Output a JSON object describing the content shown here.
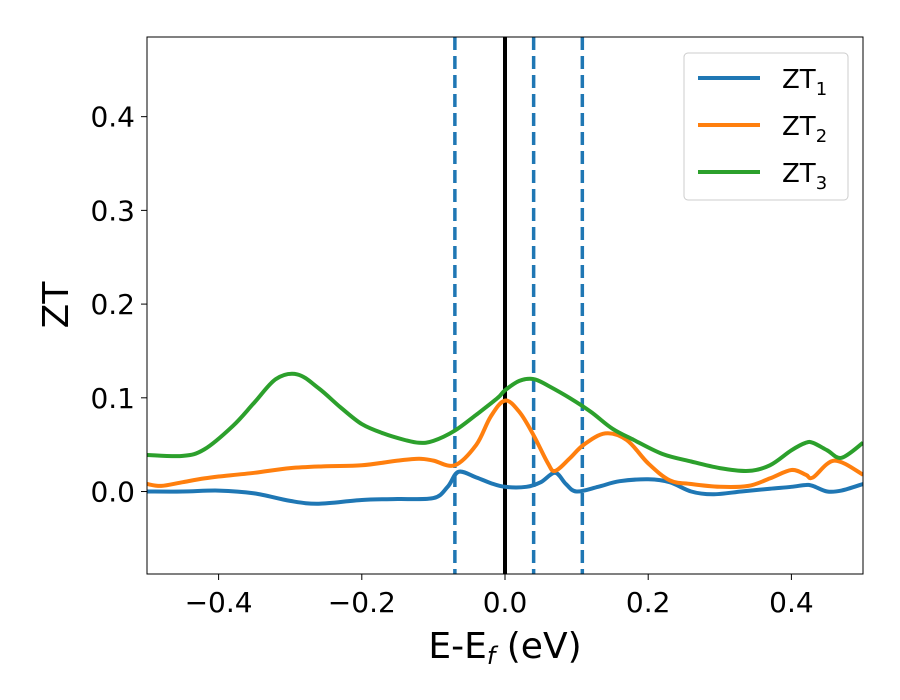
{
  "chart_data": {
    "type": "line",
    "title": "",
    "xlabel": {
      "main": "E-E",
      "sub": "f",
      "unit": " (eV)"
    },
    "ylabel": "ZT",
    "xlim": [
      -0.5,
      0.5
    ],
    "ylim": [
      -0.088,
      0.485
    ],
    "xticks": [
      -0.4,
      -0.2,
      0.0,
      0.2,
      0.4
    ],
    "xtick_labels": [
      "−0.4",
      "−0.2",
      "0.0",
      "0.2",
      "0.4"
    ],
    "yticks": [
      0.0,
      0.1,
      0.2,
      0.3,
      0.4
    ],
    "ytick_labels": [
      "0.0",
      "0.1",
      "0.2",
      "0.3",
      "0.4"
    ],
    "grid": false,
    "legend_position": "top-right",
    "vertical_lines": [
      {
        "x": 0.0,
        "style": "solid",
        "color": "#000000"
      },
      {
        "x": -0.07,
        "style": "dashed",
        "color": "#1f77b4"
      },
      {
        "x": 0.04,
        "style": "dashed",
        "color": "#1f77b4"
      },
      {
        "x": 0.108,
        "style": "dashed",
        "color": "#1f77b4"
      }
    ],
    "series": [
      {
        "name": "ZT",
        "sub": "1",
        "color": "#1f77b4",
        "x": [
          -0.5,
          -0.45,
          -0.4,
          -0.35,
          -0.3,
          -0.26,
          -0.2,
          -0.15,
          -0.1,
          -0.08,
          -0.065,
          -0.04,
          -0.02,
          0.0,
          0.03,
          0.05,
          0.07,
          0.085,
          0.1,
          0.13,
          0.16,
          0.2,
          0.23,
          0.26,
          0.29,
          0.33,
          0.37,
          0.4,
          0.42,
          0.43,
          0.45,
          0.47,
          0.5
        ],
        "y": [
          0.0,
          0.0,
          0.001,
          -0.002,
          -0.01,
          -0.013,
          -0.009,
          -0.008,
          -0.007,
          0.005,
          0.021,
          0.015,
          0.009,
          0.005,
          0.005,
          0.01,
          0.02,
          0.008,
          0.0,
          0.005,
          0.011,
          0.013,
          0.01,
          0.0,
          -0.003,
          0.0,
          0.003,
          0.005,
          0.007,
          0.006,
          0.0,
          0.001,
          0.008
        ]
      },
      {
        "name": "ZT",
        "sub": "2",
        "color": "#ff7f0e",
        "x": [
          -0.5,
          -0.48,
          -0.45,
          -0.42,
          -0.4,
          -0.35,
          -0.3,
          -0.25,
          -0.2,
          -0.15,
          -0.12,
          -0.1,
          -0.07,
          -0.04,
          -0.02,
          0.0,
          0.02,
          0.04,
          0.06,
          0.07,
          0.09,
          0.11,
          0.14,
          0.17,
          0.2,
          0.23,
          0.26,
          0.3,
          0.34,
          0.37,
          0.4,
          0.42,
          0.43,
          0.46,
          0.5
        ],
        "y": [
          0.008,
          0.006,
          0.01,
          0.014,
          0.016,
          0.02,
          0.025,
          0.027,
          0.028,
          0.033,
          0.035,
          0.033,
          0.028,
          0.05,
          0.08,
          0.097,
          0.085,
          0.06,
          0.03,
          0.022,
          0.035,
          0.05,
          0.062,
          0.055,
          0.03,
          0.012,
          0.008,
          0.005,
          0.006,
          0.014,
          0.023,
          0.018,
          0.015,
          0.033,
          0.018
        ]
      },
      {
        "name": "ZT",
        "sub": "3",
        "color": "#2ca02c",
        "x": [
          -0.5,
          -0.45,
          -0.42,
          -0.38,
          -0.35,
          -0.32,
          -0.29,
          -0.26,
          -0.23,
          -0.2,
          -0.17,
          -0.14,
          -0.12,
          -0.1,
          -0.07,
          -0.04,
          -0.01,
          0.0,
          0.02,
          0.04,
          0.06,
          0.09,
          0.12,
          0.15,
          0.18,
          0.22,
          0.26,
          0.3,
          0.34,
          0.37,
          0.4,
          0.42,
          0.43,
          0.45,
          0.47,
          0.5
        ],
        "y": [
          0.039,
          0.038,
          0.045,
          0.07,
          0.095,
          0.12,
          0.125,
          0.11,
          0.09,
          0.072,
          0.062,
          0.055,
          0.052,
          0.054,
          0.065,
          0.082,
          0.1,
          0.108,
          0.118,
          0.12,
          0.113,
          0.1,
          0.085,
          0.067,
          0.055,
          0.04,
          0.032,
          0.025,
          0.022,
          0.028,
          0.044,
          0.052,
          0.052,
          0.044,
          0.036,
          0.052
        ]
      }
    ]
  }
}
